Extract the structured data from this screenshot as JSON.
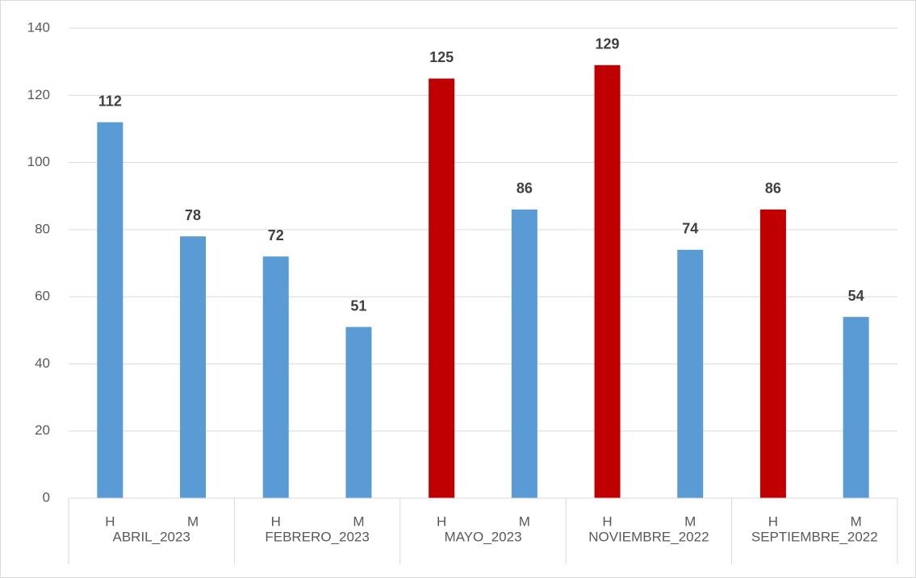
{
  "chart_data": {
    "type": "bar",
    "categories": [
      "H",
      "M",
      "H",
      "M",
      "H",
      "M",
      "H",
      "M",
      "H",
      "M"
    ],
    "groups": [
      "ABRIL_2023",
      "FEBRERO_2023",
      "MAYO_2023",
      "NOVIEMBRE_2022",
      "SEPTIEMBRE_2022"
    ],
    "values": [
      112,
      78,
      72,
      51,
      125,
      86,
      129,
      74,
      86,
      54
    ],
    "colors": [
      "#5b9bd5",
      "#5b9bd5",
      "#5b9bd5",
      "#5b9bd5",
      "#c00000",
      "#5b9bd5",
      "#c00000",
      "#5b9bd5",
      "#c00000",
      "#5b9bd5"
    ],
    "ylim": [
      0,
      140
    ],
    "yticks": [
      0,
      20,
      40,
      60,
      80,
      100,
      120,
      140
    ],
    "grid": true
  }
}
